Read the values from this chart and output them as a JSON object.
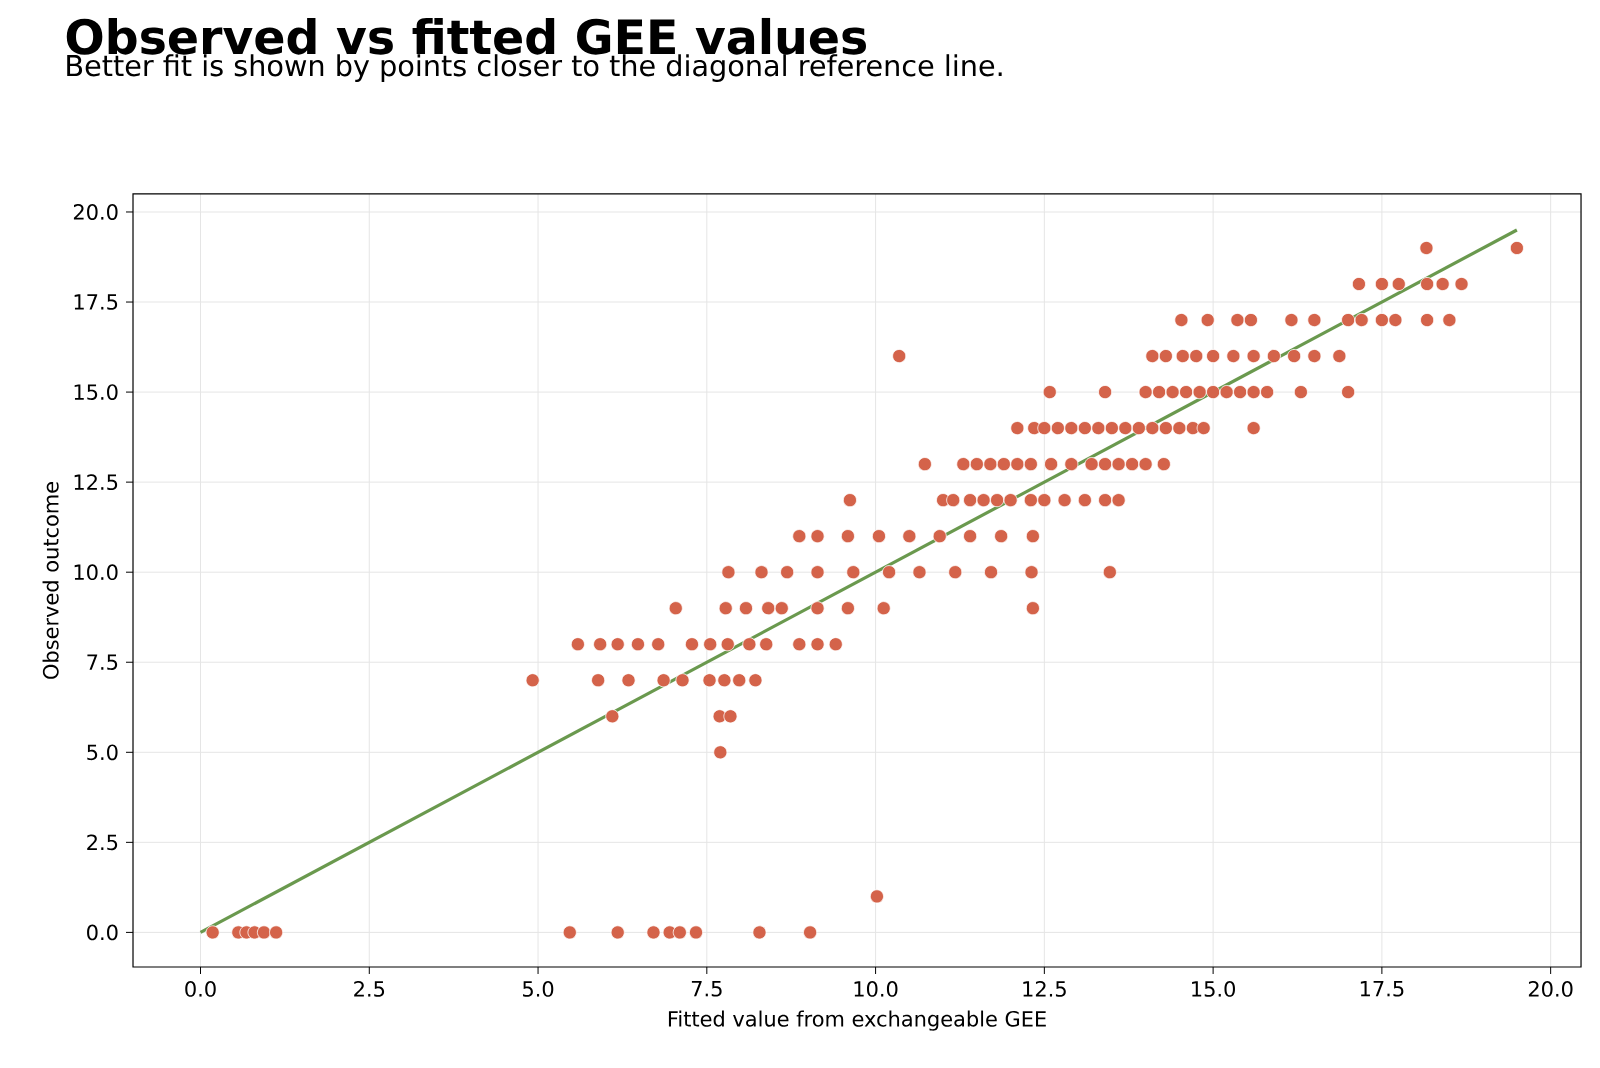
{
  "chart_data": {
    "type": "scatter",
    "title": "Observed vs fitted GEE values",
    "subtitle": "Better fit is shown by points closer to the diagonal reference line.",
    "xlabel": "Fitted value from exchangeable GEE",
    "ylabel": "Observed outcome",
    "xlim": [
      -1,
      20.45
    ],
    "ylim": [
      -0.96,
      20.5
    ],
    "xticks": [
      {
        "value": 0,
        "label": "0.0"
      },
      {
        "value": 2.5,
        "label": "2.5"
      },
      {
        "value": 5,
        "label": "5.0"
      },
      {
        "value": 7.5,
        "label": "7.5"
      },
      {
        "value": 10,
        "label": "10.0"
      },
      {
        "value": 12.5,
        "label": "12.5"
      },
      {
        "value": 15,
        "label": "15.0"
      },
      {
        "value": 17.5,
        "label": "17.5"
      },
      {
        "value": 20,
        "label": "20.0"
      }
    ],
    "yticks": [
      {
        "value": 0,
        "label": "0.0"
      },
      {
        "value": 2.5,
        "label": "2.5"
      },
      {
        "value": 5,
        "label": "5.0"
      },
      {
        "value": 7.5,
        "label": "7.5"
      },
      {
        "value": 10,
        "label": "10.0"
      },
      {
        "value": 12.5,
        "label": "12.5"
      },
      {
        "value": 15,
        "label": "15.0"
      },
      {
        "value": 17.5,
        "label": "17.5"
      },
      {
        "value": 20,
        "label": "20.0"
      }
    ],
    "grid": true,
    "marker": "circle",
    "series": [
      {
        "color": "#d4634a",
        "x": [
          0.18,
          0.56,
          0.68,
          0.8,
          0.94,
          1.12,
          5.47,
          6.18,
          6.71,
          6.95,
          7.1,
          7.34,
          8.28,
          9.03,
          10.02,
          7.7,
          6.1,
          7.69,
          7.85,
          4.92,
          5.89,
          6.34,
          6.86,
          7.14,
          7.54,
          7.76,
          7.98,
          8.22,
          5.59,
          5.92,
          6.18,
          6.48,
          6.78,
          7.28,
          7.55,
          7.81,
          8.13,
          8.38,
          8.87,
          9.14,
          9.41,
          7.04,
          7.78,
          8.08,
          8.41,
          8.61,
          9.14,
          9.59,
          10.12,
          12.33,
          7.82,
          8.31,
          8.69,
          9.14,
          9.67,
          10.2,
          10.65,
          11.18,
          11.71,
          12.31,
          13.47,
          8.87,
          9.14,
          9.59,
          10.05,
          10.5,
          10.95,
          11.4,
          11.86,
          12.33,
          9.62,
          11.0,
          11.15,
          11.4,
          11.6,
          11.8,
          12.0,
          12.3,
          12.5,
          12.8,
          13.1,
          13.4,
          13.6,
          10.73,
          11.3,
          11.5,
          11.7,
          11.9,
          12.1,
          12.3,
          12.6,
          12.9,
          13.2,
          13.4,
          13.6,
          13.8,
          14.0,
          14.27,
          12.1,
          12.35,
          12.5,
          12.7,
          12.9,
          13.1,
          13.3,
          13.5,
          13.7,
          13.9,
          14.1,
          14.3,
          14.5,
          14.7,
          14.86,
          15.6,
          12.58,
          13.4,
          14.0,
          14.2,
          14.4,
          14.6,
          14.8,
          15.0,
          15.2,
          15.4,
          15.6,
          15.8,
          16.3,
          17.0,
          10.35,
          14.1,
          14.3,
          14.55,
          14.75,
          15.0,
          15.3,
          15.6,
          15.9,
          16.2,
          16.5,
          16.87,
          14.53,
          14.92,
          15.36,
          15.56,
          16.16,
          16.5,
          17.0,
          17.2,
          17.5,
          17.7,
          18.17,
          18.5,
          17.16,
          17.5,
          17.75,
          18.17,
          18.4,
          18.68,
          18.16,
          19.5
        ],
        "values": [
          0,
          0,
          0,
          0,
          0,
          0,
          0,
          0,
          0,
          0,
          0,
          0,
          0,
          0,
          1,
          5,
          6,
          6,
          6,
          7,
          7,
          7,
          7,
          7,
          7,
          7,
          7,
          7,
          8,
          8,
          8,
          8,
          8,
          8,
          8,
          8,
          8,
          8,
          8,
          8,
          8,
          9,
          9,
          9,
          9,
          9,
          9,
          9,
          9,
          9,
          10,
          10,
          10,
          10,
          10,
          10,
          10,
          10,
          10,
          10,
          10,
          11,
          11,
          11,
          11,
          11,
          11,
          11,
          11,
          11,
          12,
          12,
          12,
          12,
          12,
          12,
          12,
          12,
          12,
          12,
          12,
          12,
          12,
          13,
          13,
          13,
          13,
          13,
          13,
          13,
          13,
          13,
          13,
          13,
          13,
          13,
          13,
          13,
          14,
          14,
          14,
          14,
          14,
          14,
          14,
          14,
          14,
          14,
          14,
          14,
          14,
          14,
          14,
          14,
          15,
          15,
          15,
          15,
          15,
          15,
          15,
          15,
          15,
          15,
          15,
          15,
          15,
          15,
          16,
          16,
          16,
          16,
          16,
          16,
          16,
          16,
          16,
          16,
          16,
          16,
          17,
          17,
          17,
          17,
          17,
          17,
          17,
          17,
          17,
          17,
          17,
          17,
          18,
          18,
          18,
          18,
          18,
          18,
          19,
          19
        ]
      },
      {
        "type": "line",
        "color": "#6a994e",
        "line_style": "solid",
        "marker": "none",
        "x": [
          0,
          19.5
        ],
        "values": [
          0,
          19.5
        ]
      }
    ]
  }
}
